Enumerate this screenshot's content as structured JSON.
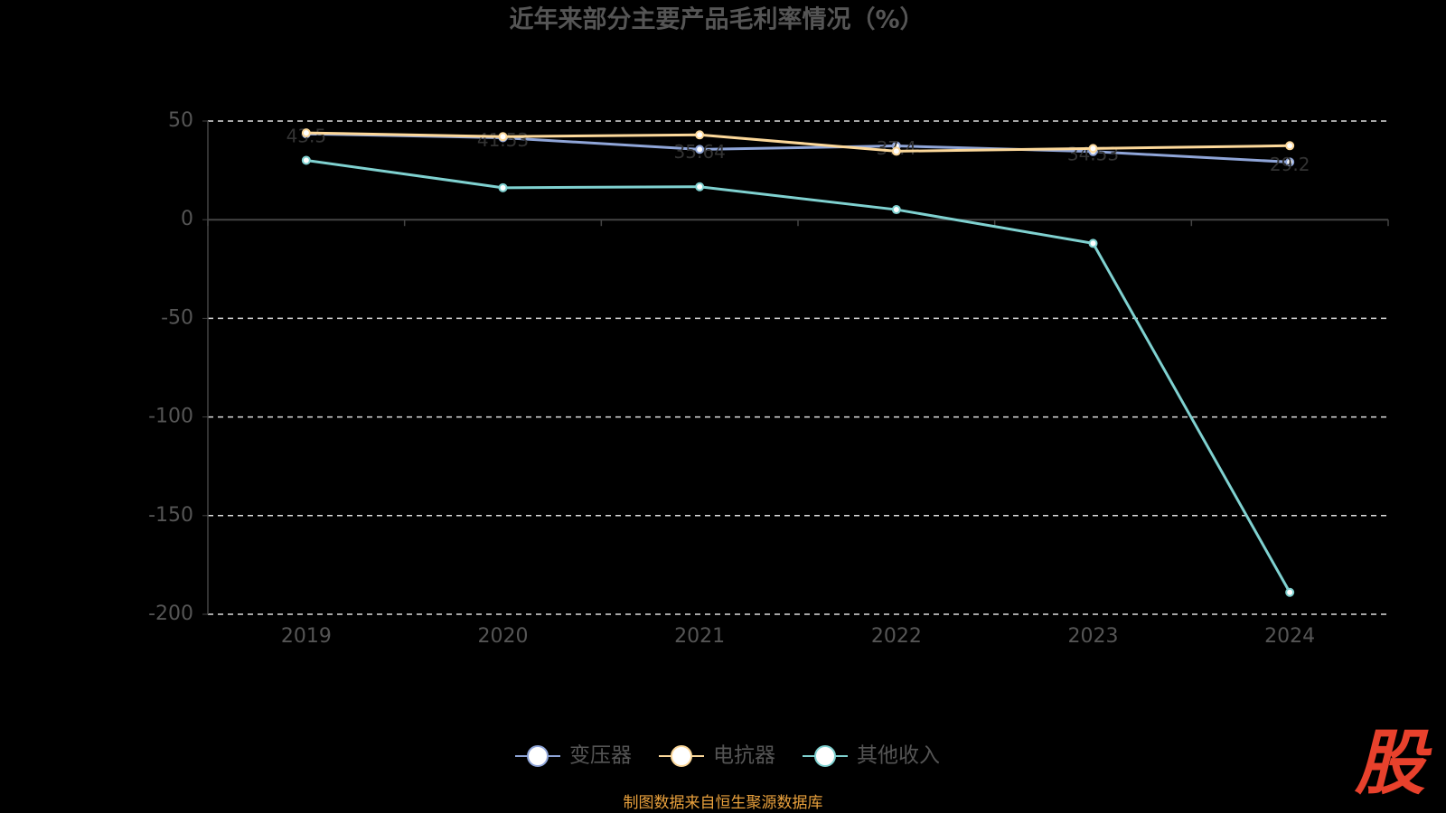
{
  "chart_data": {
    "type": "line",
    "title": "近年来部分主要产品毛利率情况（%）",
    "categories": [
      "2019",
      "2020",
      "2021",
      "2022",
      "2023",
      "2024"
    ],
    "series": [
      {
        "name": "变压器",
        "color": "#8fa5d8",
        "values": [
          43.5,
          41.53,
          35.64,
          37.4,
          34.53,
          29.2
        ]
      },
      {
        "name": "电抗器",
        "color": "#fcd89a",
        "values": [
          44,
          42.1,
          43,
          34.7,
          36.1,
          37.5
        ]
      },
      {
        "name": "其他收入",
        "color": "#7fd1d0",
        "values": [
          30.1,
          16.2,
          16.7,
          5.1,
          -12,
          -188.9
        ]
      }
    ],
    "labeled_series": 0,
    "ylim": [
      -200,
      50
    ],
    "yticks": [
      -200,
      -150,
      -100,
      -50,
      0,
      50
    ],
    "grid": true,
    "legend": "bottom",
    "source": "制图数据来自恒生聚源数据库",
    "logo": "股"
  }
}
